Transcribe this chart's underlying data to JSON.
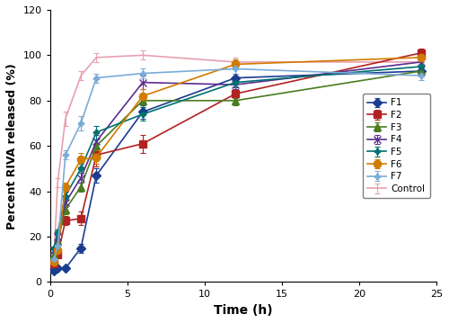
{
  "time": [
    0.25,
    0.5,
    1,
    2,
    3,
    6,
    12,
    24
  ],
  "series": {
    "F1": {
      "values": [
        5,
        6,
        6,
        15,
        47,
        75,
        90,
        93
      ],
      "errors": [
        0.5,
        0.5,
        0.8,
        2,
        3,
        3,
        2,
        2
      ],
      "color": "#1a3d8f",
      "marker": "D",
      "markersize": 5
    },
    "F2": {
      "values": [
        8,
        12,
        27,
        28,
        56,
        61,
        83,
        101
      ],
      "errors": [
        0.8,
        1,
        2,
        3,
        5,
        4,
        2,
        2
      ],
      "color": "#b22222",
      "marker": "s",
      "markersize": 6
    },
    "F3": {
      "values": [
        12,
        18,
        32,
        42,
        60,
        80,
        80,
        93
      ],
      "errors": [
        0.8,
        1,
        2,
        2,
        3,
        3,
        2,
        2
      ],
      "color": "#4a7c20",
      "marker": "^",
      "markersize": 6
    },
    "F4": {
      "values": [
        14,
        20,
        35,
        46,
        62,
        88,
        87,
        97
      ],
      "errors": [
        0.8,
        1,
        2,
        2,
        3,
        3,
        2,
        2
      ],
      "color": "#5c2d91",
      "marker": "x",
      "markersize": 6
    },
    "F5": {
      "values": [
        15,
        22,
        38,
        50,
        66,
        74,
        88,
        95
      ],
      "errors": [
        0.8,
        1,
        2,
        2,
        3,
        3,
        2,
        2
      ],
      "color": "#007070",
      "marker": "P",
      "markersize": 5
    },
    "F6": {
      "values": [
        9,
        14,
        42,
        54,
        55,
        82,
        96,
        99
      ],
      "errors": [
        0.8,
        1,
        2,
        3,
        3,
        3,
        2,
        2
      ],
      "color": "#d17b00",
      "marker": "o",
      "markersize": 6
    },
    "F7": {
      "values": [
        10,
        16,
        56,
        70,
        90,
        92,
        94,
        91
      ],
      "errors": [
        1,
        1.5,
        2,
        3,
        2,
        2,
        2,
        2
      ],
      "color": "#7bacd6",
      "marker": "P",
      "markersize": 5
    },
    "Control": {
      "values": [
        10,
        44,
        72,
        91,
        99,
        100,
        97,
        97
      ],
      "errors": [
        1,
        2,
        3,
        2,
        2,
        2,
        2,
        2
      ],
      "color": "#e8a0b0",
      "marker": null,
      "markersize": 0
    }
  },
  "xlabel": "Time (h)",
  "ylabel": "Percent RIVA released (%)",
  "xlim": [
    0,
    25
  ],
  "ylim": [
    0,
    120
  ],
  "yticks": [
    0,
    20,
    40,
    60,
    80,
    100,
    120
  ],
  "xticks": [
    0,
    5,
    10,
    15,
    20,
    25
  ],
  "figsize": [
    5.0,
    3.59
  ],
  "dpi": 100
}
